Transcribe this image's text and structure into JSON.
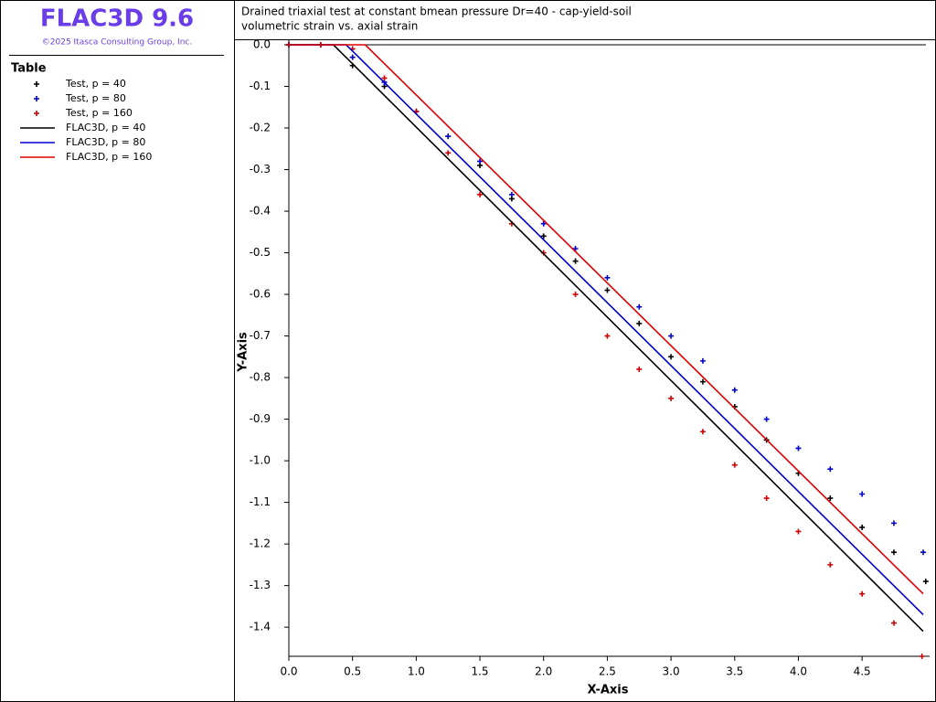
{
  "app": {
    "name": "FLAC3D 9.6",
    "copyright": "©2025 Itasca Consulting Group, Inc.",
    "legend_title": "Table"
  },
  "chart_data": {
    "type": "line",
    "title": "Drained triaxial test at constant bmean pressure Dr=40 - cap-yield-soil",
    "subtitle": "volumetric strain vs. axial strain",
    "x_label": "X-Axis",
    "y_label": "Y-Axis",
    "xlim": [
      0,
      5.03
    ],
    "ylim": [
      -1.47,
      0
    ],
    "xticks": [
      {
        "value": 0,
        "label": "0.0"
      },
      0.5,
      {
        "value": 1,
        "label": "1.0"
      },
      1.5,
      {
        "value": 2,
        "label": "2.0"
      },
      2.5,
      {
        "value": 3,
        "label": "3.0"
      },
      3.5,
      {
        "value": 4,
        "label": "4.0"
      },
      4.5
    ],
    "yticks": [
      {
        "value": 0,
        "label": "0.0"
      },
      -0.1,
      -0.2,
      -0.3,
      -0.4,
      -0.5,
      -0.6,
      -0.7,
      -0.8,
      -0.9,
      {
        "value": -1,
        "label": "-1.0"
      },
      -1.1,
      -1.2,
      -1.3,
      -1.4
    ],
    "series": [
      {
        "name": "Test, p = 40",
        "color": "#000000",
        "style": "markers",
        "x": [
          0,
          0.25,
          0.5,
          0.75,
          1,
          1.25,
          1.5,
          1.75,
          2,
          2.25,
          2.5,
          2.75,
          3,
          3.25,
          3.5,
          3.75,
          4,
          4.25,
          4.5,
          4.75,
          5
        ],
        "values": [
          0,
          0,
          -0.05,
          -0.1,
          -0.16,
          -0.22,
          -0.29,
          -0.37,
          -0.46,
          -0.52,
          -0.59,
          -0.67,
          -0.75,
          -0.81,
          -0.87,
          -0.95,
          -1.03,
          -1.09,
          -1.16,
          -1.22,
          -1.29
        ]
      },
      {
        "name": "Test, p = 80",
        "color": "#0000cc",
        "style": "markers",
        "x": [
          0,
          0.25,
          0.5,
          0.75,
          1,
          1.25,
          1.5,
          1.75,
          2,
          2.25,
          2.5,
          2.75,
          3,
          3.25,
          3.5,
          3.75,
          4,
          4.25,
          4.5,
          4.75,
          4.98
        ],
        "values": [
          0,
          0,
          -0.03,
          -0.09,
          -0.16,
          -0.22,
          -0.28,
          -0.36,
          -0.43,
          -0.49,
          -0.56,
          -0.63,
          -0.7,
          -0.76,
          -0.83,
          -0.9,
          -0.97,
          -1.02,
          -1.08,
          -1.15,
          -1.22
        ]
      },
      {
        "name": "Test, p = 160",
        "color": "#cc0000",
        "style": "markers",
        "x": [
          0,
          0.25,
          0.5,
          0.75,
          1,
          1.25,
          1.5,
          1.75,
          2,
          2.25,
          2.5,
          2.75,
          3,
          3.25,
          3.5,
          3.75,
          4,
          4.25,
          4.5,
          4.75,
          4.97
        ],
        "values": [
          0,
          0,
          -0.01,
          -0.08,
          -0.16,
          -0.26,
          -0.36,
          -0.43,
          -0.5,
          -0.6,
          -0.7,
          -0.78,
          -0.85,
          -0.93,
          -1.01,
          -1.09,
          -1.17,
          -1.25,
          -1.32,
          -1.39,
          -1.47
        ]
      },
      {
        "name": "FLAC3D, p = 40",
        "color": "#000000",
        "style": "line",
        "x": [
          0,
          0.35,
          4.98
        ],
        "values": [
          0,
          0,
          -1.41
        ]
      },
      {
        "name": "FLAC3D, p = 80",
        "color": "#0000cc",
        "style": "line",
        "x": [
          0,
          0.45,
          4.98
        ],
        "values": [
          0,
          0,
          -1.37
        ]
      },
      {
        "name": "FLAC3D, p = 160",
        "color": "#dd0000",
        "style": "line",
        "x": [
          0,
          0.6,
          4.98
        ],
        "values": [
          0,
          0,
          -1.32
        ]
      }
    ]
  }
}
